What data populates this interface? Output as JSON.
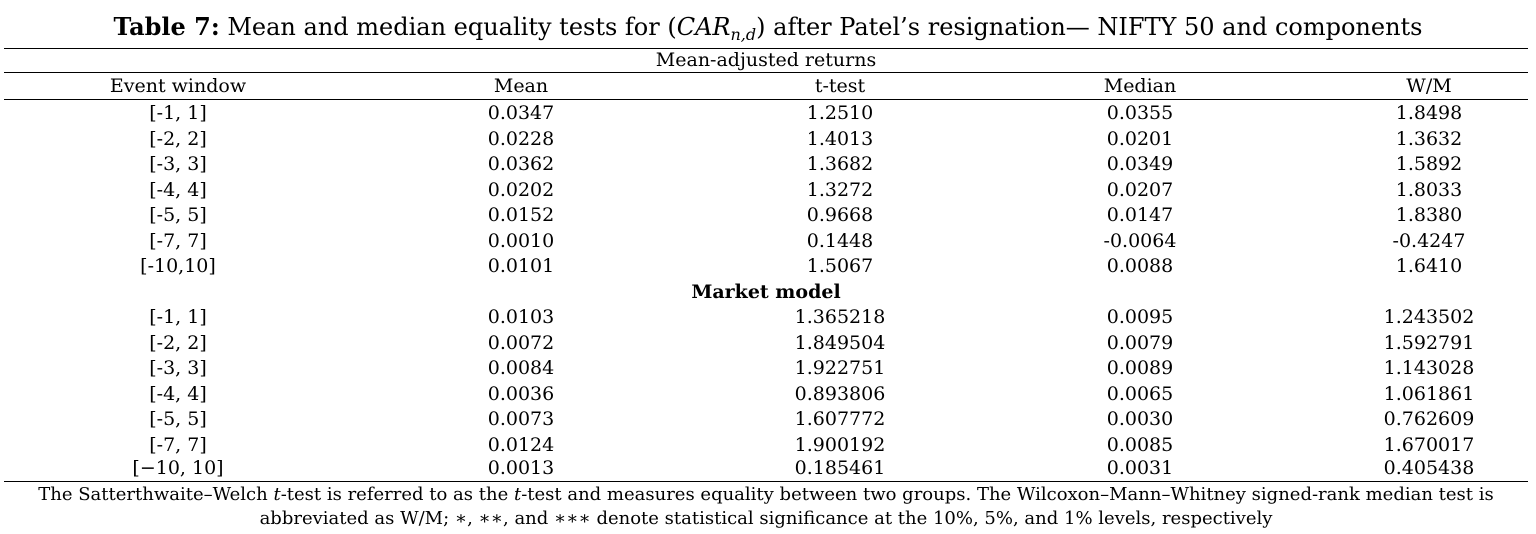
{
  "title": {
    "label": "Table 7:",
    "text_before": " Mean and median equality tests for (",
    "math_main": "CAR",
    "math_sub": "n,d",
    "text_after": ") after Patel’s resignation— NIFTY 50 and components"
  },
  "sections": {
    "first": "Mean-adjusted returns",
    "second": "Market model"
  },
  "columns": [
    "Event window",
    "Mean",
    "t-test",
    "Median",
    "W/M"
  ],
  "mean_adjusted_rows": [
    [
      "[-1, 1]",
      "0.0347",
      "1.2510",
      "0.0355",
      "1.8498"
    ],
    [
      "[-2, 2]",
      "0.0228",
      "1.4013",
      "0.0201",
      "1.3632"
    ],
    [
      "[-3, 3]",
      "0.0362",
      "1.3682",
      "0.0349",
      "1.5892"
    ],
    [
      "[-4, 4]",
      "0.0202",
      "1.3272",
      "0.0207",
      "1.8033"
    ],
    [
      "[-5, 5]",
      "0.0152",
      "0.9668",
      "0.0147",
      "1.8380"
    ],
    [
      "[-7, 7]",
      "0.0010",
      "0.1448",
      "-0.0064",
      "-0.4247"
    ],
    [
      "[-10,10]",
      "0.0101",
      "1.5067",
      "0.0088",
      "1.6410"
    ]
  ],
  "market_model_rows": [
    [
      "[-1, 1]",
      "0.0103",
      "1.365218",
      "0.0095",
      "1.243502"
    ],
    [
      "[-2, 2]",
      "0.0072",
      "1.849504",
      "0.0079",
      "1.592791"
    ],
    [
      "[-3, 3]",
      "0.0084",
      "1.922751",
      "0.0089",
      "1.143028"
    ],
    [
      "[-4, 4]",
      "0.0036",
      "0.893806",
      "0.0065",
      "1.061861"
    ],
    [
      "[-5, 5]",
      "0.0073",
      "1.607772",
      "0.0030",
      "0.762609"
    ],
    [
      "[-7, 7]",
      "0.0124",
      "1.900192",
      "0.0085",
      "1.670017"
    ],
    [
      "[−10, 10]",
      "0.0013",
      "0.185461",
      "0.0031",
      "0.405438"
    ]
  ],
  "note": {
    "p1": "The Satterthwaite–Welch ",
    "t1": "t",
    "p2": "-test is referred to as the ",
    "t2": "t",
    "p3": "-test and measures equality between two groups. The Wilcoxon–Mann–Whitney signed-rank median test is abbreviated as W/M; ∗, ∗∗, and ∗∗∗ denote statistical significance at the 10%, 5%, and 1% levels, respectively"
  }
}
